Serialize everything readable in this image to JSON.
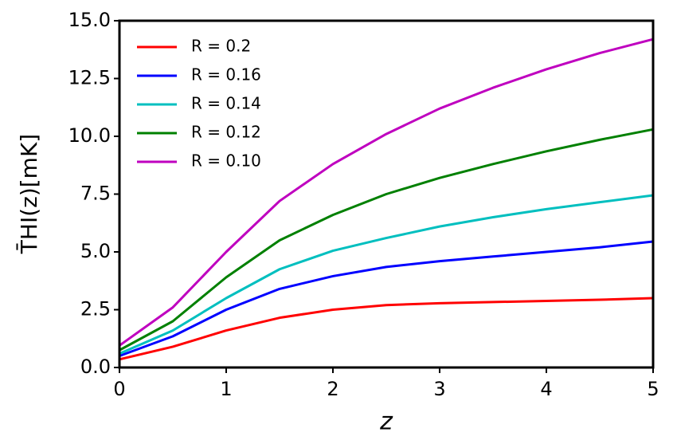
{
  "chart_data": {
    "type": "line",
    "xlabel": "z",
    "ylabel": "T̄HI(z)[mK]",
    "x": [
      0,
      0.5,
      1,
      1.5,
      2,
      2.5,
      3,
      3.5,
      4,
      4.5,
      5
    ],
    "series": [
      {
        "name": "R = 0.2",
        "color": "#ff0000",
        "values": [
          0.35,
          0.9,
          1.6,
          2.15,
          2.5,
          2.7,
          2.78,
          2.83,
          2.88,
          2.93,
          3.0
        ]
      },
      {
        "name": "R = 0.16",
        "color": "#0000ff",
        "values": [
          0.5,
          1.35,
          2.5,
          3.4,
          3.95,
          4.35,
          4.6,
          4.8,
          5.0,
          5.2,
          5.45
        ]
      },
      {
        "name": "R = 0.14",
        "color": "#00bfbf",
        "values": [
          0.6,
          1.6,
          3.0,
          4.25,
          5.05,
          5.6,
          6.1,
          6.5,
          6.85,
          7.15,
          7.45
        ]
      },
      {
        "name": "R = 0.12",
        "color": "#008000",
        "values": [
          0.75,
          2.0,
          3.9,
          5.5,
          6.6,
          7.5,
          8.2,
          8.8,
          9.35,
          9.85,
          10.3
        ]
      },
      {
        "name": "R = 0.10",
        "color": "#bf00bf",
        "values": [
          0.95,
          2.6,
          5.0,
          7.2,
          8.8,
          10.1,
          11.2,
          12.1,
          12.9,
          13.6,
          14.2
        ]
      }
    ],
    "xlim": [
      0,
      5
    ],
    "xticks": [
      0,
      1,
      2,
      3,
      4,
      5
    ],
    "ylim": [
      0,
      15
    ],
    "yticks": [
      {
        "value": 0,
        "label": "0.0"
      },
      2.5,
      {
        "value": 5,
        "label": "5.0"
      },
      7.5,
      {
        "value": 10,
        "label": "10.0"
      },
      12.5,
      {
        "value": 15,
        "label": "15.0"
      }
    ],
    "legend": "upper-left"
  }
}
